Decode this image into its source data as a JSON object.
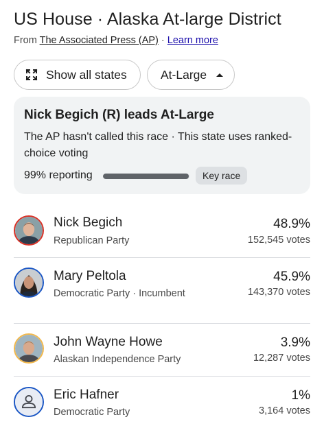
{
  "header": {
    "title": "US House · Alaska At-large District",
    "source_prefix": "From ",
    "source_name": "The Associated Press (AP)",
    "source_sep": " · ",
    "learn_more": "Learn more"
  },
  "chips": {
    "show_states": "Show all states",
    "district": "At-Large"
  },
  "summary": {
    "lead": "Nick Begich (R) leads At-Large",
    "note": "The AP hasn't called this race · This state uses ranked-choice voting",
    "reporting": "99% reporting",
    "reporting_fraction": 0.99,
    "key_race": "Key race"
  },
  "candidates": [
    {
      "name": "Nick Begich",
      "party": "Republican Party",
      "pct": "48.9%",
      "votes": "152,545 votes",
      "ring_color": "#d93025",
      "icon": "candidate-photo"
    },
    {
      "name": "Mary Peltola",
      "party": "Democratic Party · Incumbent",
      "pct": "45.9%",
      "votes": "143,370 votes",
      "ring_color": "#1a56c4",
      "icon": "candidate-photo"
    },
    {
      "name": "John Wayne Howe",
      "party": "Alaskan Independence Party",
      "pct": "3.9%",
      "votes": "12,287 votes",
      "ring_color": "#f2b84b",
      "icon": "candidate-photo"
    },
    {
      "name": "Eric Hafner",
      "party": "Democratic Party",
      "pct": "1%",
      "votes": "3,164 votes",
      "ring_color": "#1a56c4",
      "icon": "person-placeholder-icon"
    }
  ]
}
